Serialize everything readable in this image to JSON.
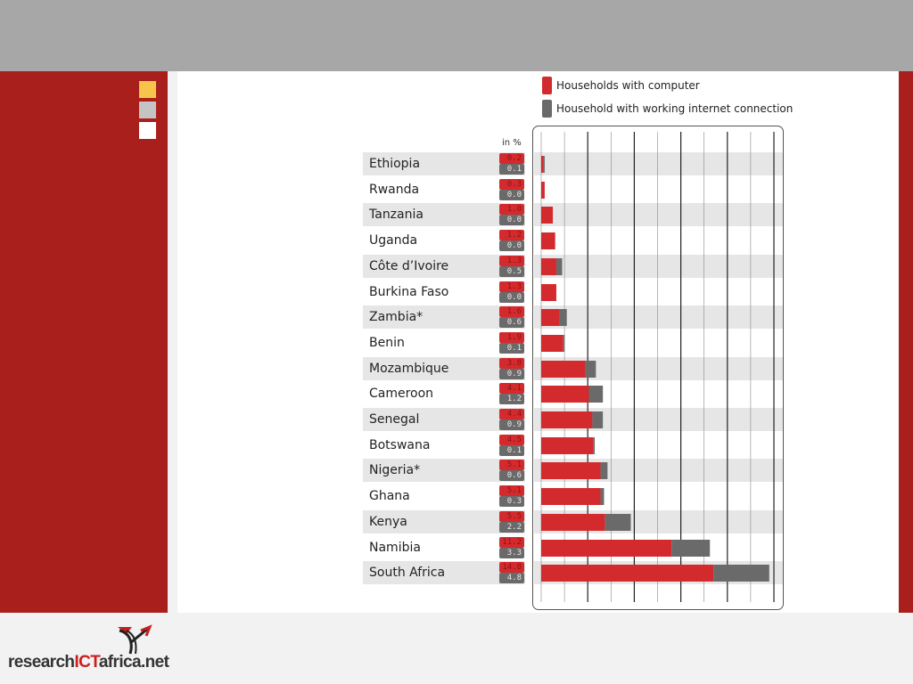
{
  "colors": {
    "computer": "#d32a2e",
    "internet": "#6a6a6a",
    "row_band": "#e6e6e6",
    "brand_red": "#a91f1c"
  },
  "decor": [
    "#f6c44b",
    "#c4c4c4",
    "#ffffff"
  ],
  "logo": {
    "part1": "research",
    "part2": "ICT",
    "part3": "africa.net"
  },
  "chart_data": {
    "type": "bar",
    "orientation": "horizontal",
    "stacked": true,
    "unit_label": "in %",
    "legend": {
      "position": "top-right",
      "items": [
        "Households with computer",
        "Household with working internet connection"
      ]
    },
    "categories": [
      "Ethiopia",
      "Rwanda",
      "Tanzania",
      "Uganda",
      "Côte d’Ivoire",
      "Burkina Faso",
      "Zambia*",
      "Benin",
      "Mozambique",
      "Cameroon",
      "Senegal",
      "Botswana",
      "Nigeria*",
      "Ghana",
      "Kenya",
      "Namibia",
      "South Africa"
    ],
    "series": [
      {
        "name": "Households with computer",
        "values": [
          "0.2",
          "0.3",
          "1.0",
          "1.2",
          "1.3",
          "1.3",
          "1.6",
          "1.9",
          "3.8",
          "4.1",
          "4.4",
          "4.5",
          "5.1",
          "5.1",
          "5.5",
          "11.2",
          "14.8"
        ]
      },
      {
        "name": "Household with working internet connection",
        "values": [
          "0.1",
          "0.0",
          "0.0",
          "0.0",
          "0.5",
          "0.0",
          "0.6",
          "0.1",
          "0.9",
          "1.2",
          "0.9",
          "0.1",
          "0.6",
          "0.3",
          "2.2",
          "3.3",
          "4.8"
        ]
      }
    ],
    "xlim": [
      0,
      20
    ],
    "gridlines": 10,
    "grid": true
  }
}
